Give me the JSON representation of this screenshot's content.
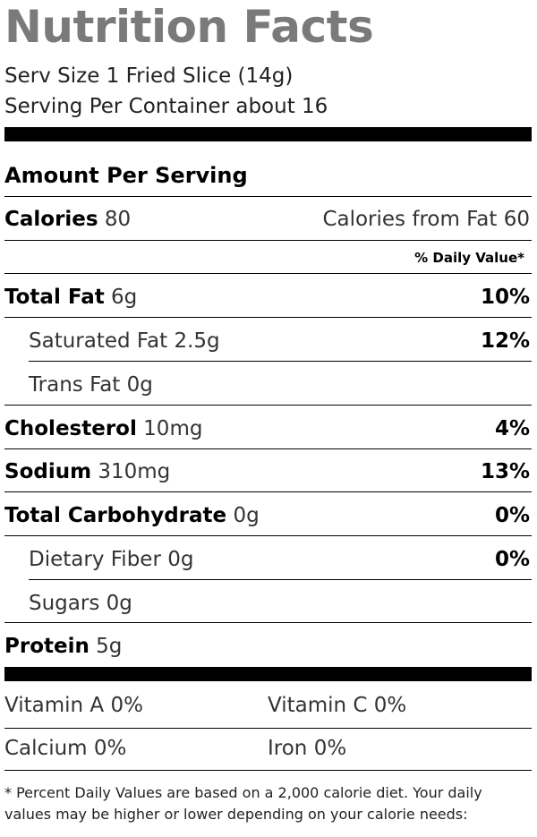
{
  "title": "Nutrition Facts",
  "serving_size": "Serv Size 1 Fried Slice (14g)",
  "servings_per_container": "Serving Per Container about 16",
  "amount_per_serving": "Amount Per Serving",
  "calories": {
    "label": "Calories",
    "value": "80",
    "from_fat": "Calories from Fat 60"
  },
  "daily_value_header": "% Daily Value*",
  "nutrients": {
    "total_fat": {
      "label": "Total Fat",
      "amount": "6g",
      "dv": "10%"
    },
    "saturated_fat": {
      "label": "Saturated Fat",
      "amount": "2.5g",
      "dv": "12%"
    },
    "trans_fat": {
      "label": "Trans Fat",
      "amount": "0g"
    },
    "cholesterol": {
      "label": "Cholesterol",
      "amount": "10mg",
      "dv": "4%"
    },
    "sodium": {
      "label": "Sodium",
      "amount": "310mg",
      "dv": "13%"
    },
    "total_carbohydrate": {
      "label": "Total Carbohydrate",
      "amount": "0g",
      "dv": "0%"
    },
    "dietary_fiber": {
      "label": "Dietary Fiber",
      "amount": "0g",
      "dv": "0%"
    },
    "sugars": {
      "label": "Sugars",
      "amount": "0g"
    },
    "protein": {
      "label": "Protein",
      "amount": "5g"
    }
  },
  "vitamins": {
    "vitamin_a": "Vitamin A 0%",
    "vitamin_c": "Vitamin C 0%",
    "calcium": "Calcium 0%",
    "iron": "Iron 0%"
  },
  "footnote": "* Percent Daily Values are based on a 2,000 calorie diet. Your daily values may be higher or lower depending on your calorie needs:",
  "colors": {
    "title": "#7a7a7a",
    "text": "#111111",
    "rule": "#000000"
  }
}
